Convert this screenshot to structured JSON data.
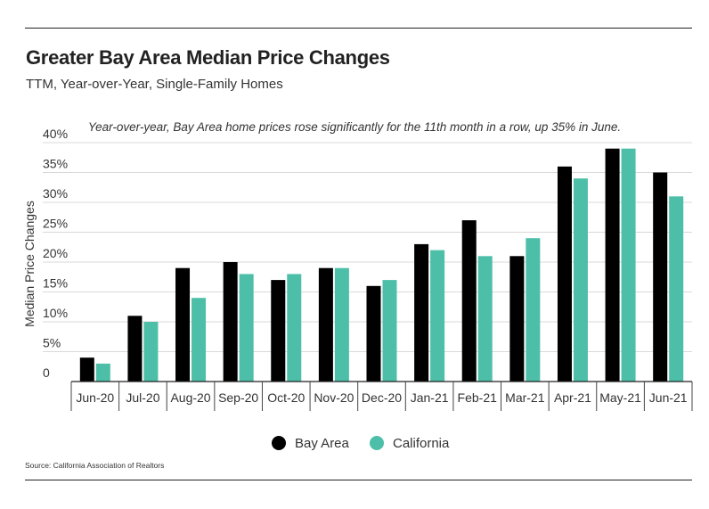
{
  "header": {
    "title": "Greater Bay Area Median Price Changes",
    "subtitle": "TTM, Year-over-Year, Single-Family Homes"
  },
  "annotation": "Year-over-year, Bay Area home prices rose significantly for the 11th month in a row, up 35% in June.",
  "footer": {
    "source": "Source:  California Association of Realtors"
  },
  "chart_data": {
    "type": "bar",
    "title": "Greater Bay Area Median Price Changes",
    "subtitle": "TTM, Year-over-Year, Single-Family Homes",
    "xlabel": "",
    "ylabel": "Median Price Changes",
    "ylim": [
      0,
      40
    ],
    "y_ticks": [
      "0",
      "5%",
      "10%",
      "15%",
      "20%",
      "25%",
      "30%",
      "35%",
      "40%"
    ],
    "grid": true,
    "legend_position": "bottom",
    "categories": [
      "Jun-20",
      "Jul-20",
      "Aug-20",
      "Sep-20",
      "Oct-20",
      "Nov-20",
      "Dec-20",
      "Jan-21",
      "Feb-21",
      "Mar-21",
      "Apr-21",
      "May-21",
      "Jun-21"
    ],
    "series": [
      {
        "name": "Bay Area",
        "color": "#000000",
        "values": [
          4,
          11,
          19,
          20,
          17,
          19,
          16,
          23,
          27,
          21,
          36,
          39,
          35
        ]
      },
      {
        "name": "California",
        "color": "#4dbfa8",
        "values": [
          3,
          10,
          14,
          18,
          18,
          19,
          17,
          22,
          21,
          24,
          34,
          39,
          31
        ]
      }
    ]
  }
}
